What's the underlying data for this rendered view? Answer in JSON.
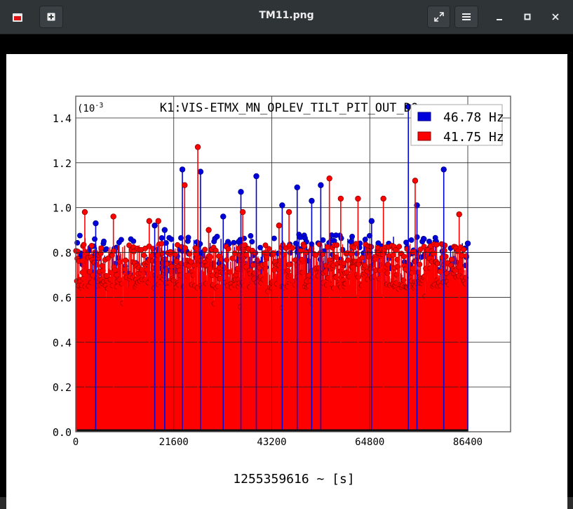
{
  "window": {
    "title": "TM11.png",
    "icons": {
      "app": "image-viewer-icon",
      "new_tab": "plus-icon",
      "fullscreen": "expand-arrows-icon",
      "menu": "hamburger-menu-icon",
      "minimize": "minimize-icon",
      "maximize": "maximize-icon",
      "close": "close-icon"
    }
  },
  "chart_data": {
    "type": "bar",
    "title": "K1:VIS-ETMX_MN_OPLEV_TILT_PIT_OUT_DQ",
    "xlabel": "1255359616 ~ [s]",
    "ylabel": "",
    "y_exponent_label": "(10",
    "y_exponent_power": "-3",
    "xlim": [
      0,
      86400
    ],
    "ylim": [
      0.0,
      1.45
    ],
    "x_ticks": [
      "0",
      "21600",
      "43200",
      "64800",
      "86400"
    ],
    "y_ticks": [
      "0.0",
      "0.2",
      "0.4",
      "0.6",
      "0.8",
      "1.0",
      "1.2",
      "1.4"
    ],
    "grid": true,
    "legend_position": "top-right",
    "series": [
      {
        "name": "46.78 Hz",
        "color": "#0000dd",
        "baseline": 0.79,
        "spread": 0.09,
        "peaks": [
          [
            4400,
            0.93
          ],
          [
            17400,
            0.92
          ],
          [
            19600,
            0.9
          ],
          [
            23500,
            1.17
          ],
          [
            27500,
            1.16
          ],
          [
            32500,
            0.96
          ],
          [
            36400,
            1.07
          ],
          [
            39800,
            1.14
          ],
          [
            45500,
            1.01
          ],
          [
            48800,
            1.09
          ],
          [
            52000,
            1.03
          ],
          [
            54000,
            1.1
          ],
          [
            65200,
            0.94
          ],
          [
            73300,
            1.45
          ],
          [
            75200,
            1.01
          ],
          [
            81100,
            1.17
          ],
          [
            86400,
            0.84
          ]
        ]
      },
      {
        "name": "41.75 Hz",
        "color": "#ff0000",
        "baseline": 0.74,
        "spread": 0.1,
        "peaks": [
          [
            2000,
            0.98
          ],
          [
            8300,
            0.96
          ],
          [
            16200,
            0.94
          ],
          [
            18200,
            0.94
          ],
          [
            24000,
            1.1
          ],
          [
            26900,
            1.27
          ],
          [
            29300,
            0.9
          ],
          [
            36800,
            0.98
          ],
          [
            44800,
            0.92
          ],
          [
            47000,
            0.98
          ],
          [
            55900,
            1.13
          ],
          [
            58400,
            1.04
          ],
          [
            62200,
            1.04
          ],
          [
            67800,
            1.04
          ],
          [
            74800,
            1.12
          ],
          [
            84500,
            0.97
          ]
        ]
      }
    ]
  }
}
